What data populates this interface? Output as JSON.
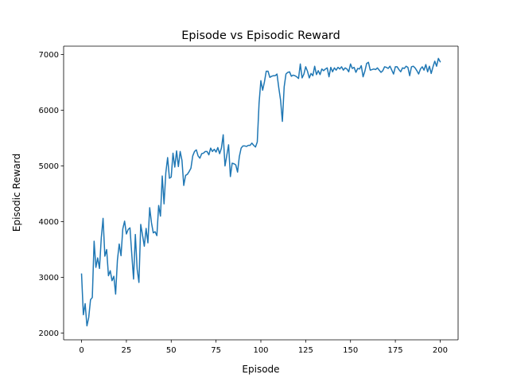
{
  "chart_data": {
    "type": "line",
    "title": "Episode vs Episodic Reward",
    "xlabel": "Episode",
    "ylabel": "Episodic Reward",
    "xlim": [
      -10,
      210
    ],
    "ylim": [
      1880,
      7150
    ],
    "xticks": [
      0,
      25,
      50,
      75,
      100,
      125,
      150,
      175,
      200
    ],
    "yticks": [
      2000,
      3000,
      4000,
      5000,
      6000,
      7000
    ],
    "grid": false,
    "legend": "none",
    "line_color": "#1f77b4",
    "series": [
      {
        "name": "",
        "x": [
          0,
          1,
          2,
          3,
          4,
          5,
          6,
          7,
          8,
          9,
          10,
          11,
          12,
          13,
          14,
          15,
          16,
          17,
          18,
          19,
          20,
          21,
          22,
          23,
          24,
          25,
          26,
          27,
          28,
          29,
          30,
          31,
          32,
          33,
          34,
          35,
          36,
          37,
          38,
          39,
          40,
          41,
          42,
          43,
          44,
          45,
          46,
          47,
          48,
          49,
          50,
          51,
          52,
          53,
          54,
          55,
          56,
          57,
          58,
          59,
          60,
          61,
          62,
          63,
          64,
          65,
          66,
          67,
          68,
          69,
          70,
          71,
          72,
          73,
          74,
          75,
          76,
          77,
          78,
          79,
          80,
          81,
          82,
          83,
          84,
          85,
          86,
          87,
          88,
          89,
          90,
          91,
          92,
          93,
          94,
          95,
          96,
          97,
          98,
          99,
          100,
          101,
          102,
          103,
          104,
          105,
          106,
          107,
          108,
          109,
          110,
          111,
          112,
          113,
          114,
          115,
          116,
          117,
          118,
          119,
          120,
          121,
          122,
          123,
          124,
          125,
          126,
          127,
          128,
          129,
          130,
          131,
          132,
          133,
          134,
          135,
          136,
          137,
          138,
          139,
          140,
          141,
          142,
          143,
          144,
          145,
          146,
          147,
          148,
          149,
          150,
          151,
          152,
          153,
          154,
          155,
          156,
          157,
          158,
          159,
          160,
          161,
          162,
          163,
          164,
          165,
          166,
          167,
          168,
          169,
          170,
          171,
          172,
          173,
          174,
          175,
          176,
          177,
          178,
          179,
          180,
          181,
          182,
          183,
          184,
          185,
          186,
          187,
          188,
          189,
          190,
          191,
          192,
          193,
          194,
          195,
          196,
          197,
          198,
          199,
          200
        ],
        "values": [
          3060,
          2330,
          2530,
          2130,
          2280,
          2600,
          2640,
          3650,
          3180,
          3350,
          3160,
          3710,
          4060,
          3380,
          3500,
          3030,
          3120,
          2940,
          3020,
          2700,
          3310,
          3600,
          3390,
          3870,
          4010,
          3780,
          3860,
          3890,
          3420,
          2970,
          3770,
          3150,
          2910,
          3950,
          3760,
          3560,
          3880,
          3620,
          4250,
          3980,
          3800,
          3820,
          3750,
          4290,
          4100,
          4820,
          4320,
          4880,
          5150,
          4780,
          4800,
          5230,
          4980,
          5270,
          4990,
          5260,
          5100,
          4650,
          4830,
          4850,
          4900,
          4960,
          5180,
          5260,
          5290,
          5180,
          5140,
          5220,
          5230,
          5260,
          5260,
          5200,
          5320,
          5260,
          5300,
          5250,
          5330,
          5220,
          5320,
          5560,
          5000,
          5190,
          5380,
          4810,
          5050,
          5040,
          5020,
          4890,
          5170,
          5320,
          5360,
          5360,
          5350,
          5370,
          5370,
          5410,
          5370,
          5340,
          5430,
          6130,
          6530,
          6360,
          6510,
          6700,
          6700,
          6590,
          6610,
          6620,
          6620,
          6650,
          6400,
          6180,
          5800,
          6420,
          6650,
          6680,
          6690,
          6610,
          6630,
          6620,
          6600,
          6570,
          6830,
          6580,
          6650,
          6780,
          6700,
          6580,
          6660,
          6620,
          6790,
          6640,
          6710,
          6640,
          6740,
          6710,
          6740,
          6760,
          6600,
          6770,
          6690,
          6760,
          6720,
          6770,
          6740,
          6780,
          6720,
          6760,
          6740,
          6690,
          6830,
          6750,
          6770,
          6680,
          6750,
          6740,
          6800,
          6600,
          6700,
          6840,
          6860,
          6720,
          6730,
          6740,
          6730,
          6760,
          6720,
          6680,
          6710,
          6780,
          6770,
          6750,
          6790,
          6720,
          6650,
          6780,
          6780,
          6730,
          6690,
          6760,
          6750,
          6790,
          6770,
          6620,
          6780,
          6790,
          6760,
          6710,
          6650,
          6740,
          6780,
          6720,
          6820,
          6690,
          6790,
          6660,
          6780,
          6880,
          6790,
          6930,
          6870
        ]
      }
    ]
  }
}
